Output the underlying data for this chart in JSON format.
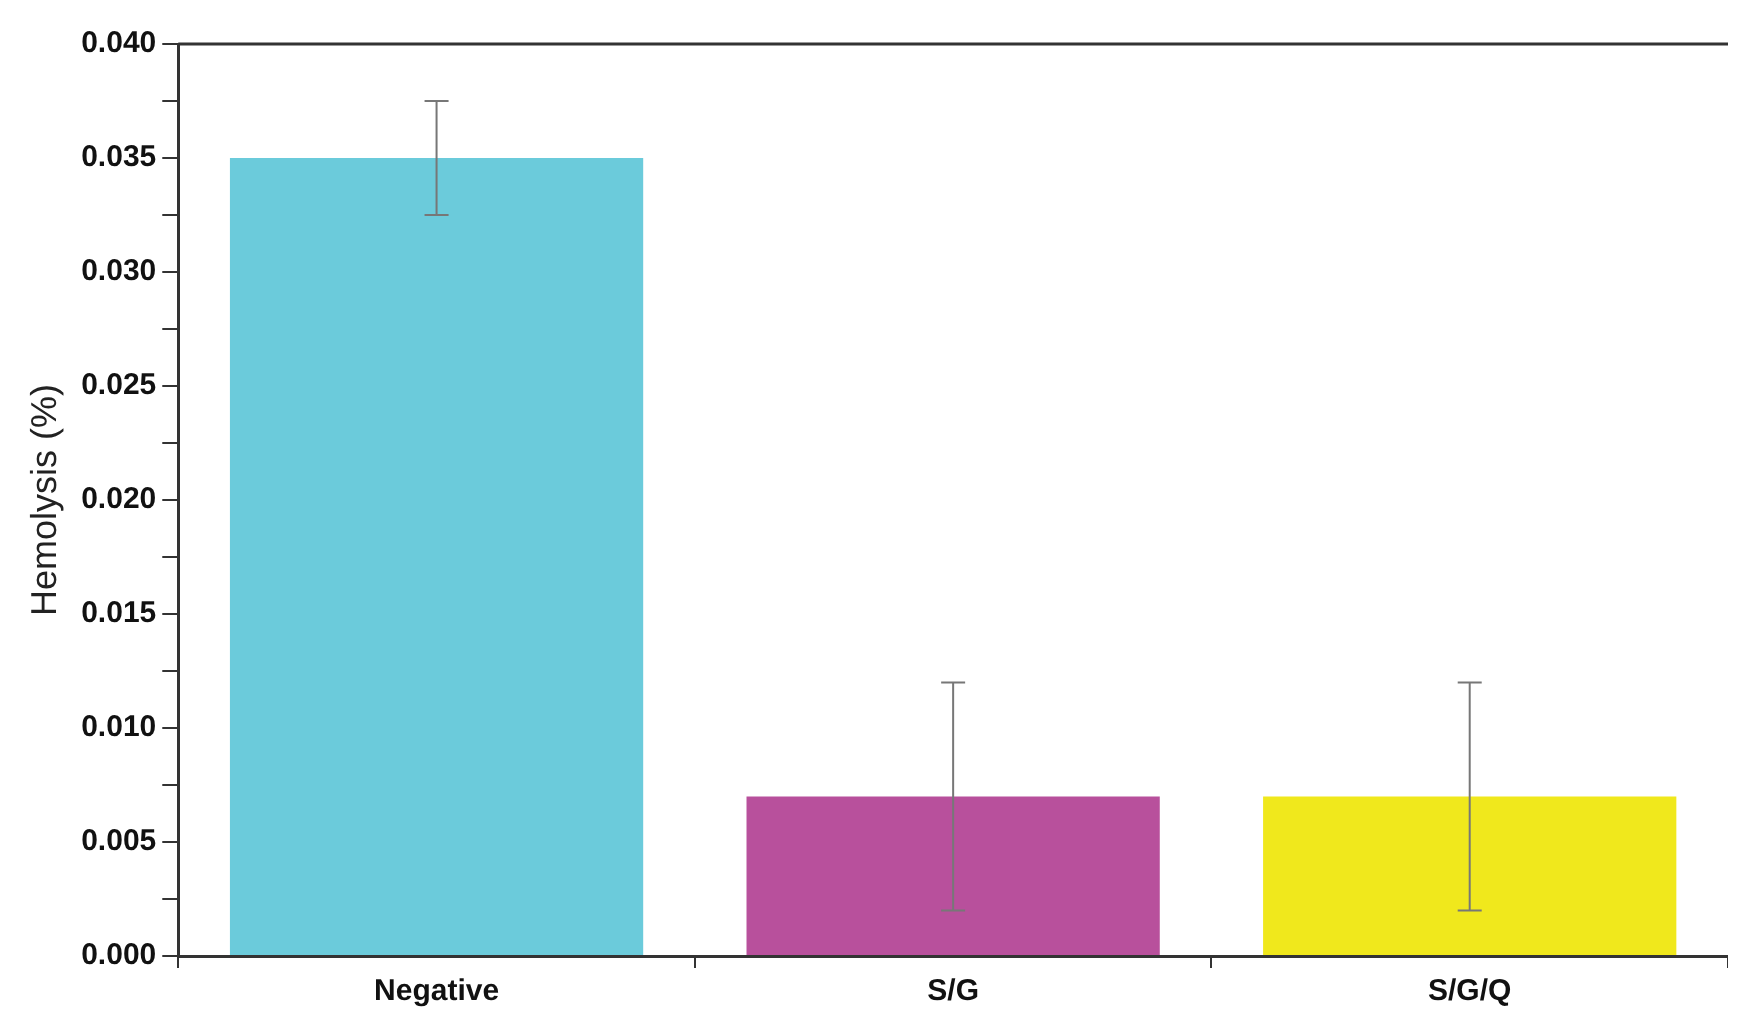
{
  "chart_data": {
    "type": "bar",
    "ylabel": "Hemolysis (%)",
    "categories": [
      "Negative",
      "S/G",
      "S/G/Q"
    ],
    "values": [
      0.035,
      0.007,
      0.007
    ],
    "colors": [
      "#6bcbdb",
      "#b8509c",
      "#f0e81c"
    ],
    "errors": [
      0.0025,
      0.005,
      0.005
    ],
    "ylim": [
      0,
      0.04
    ],
    "yticks": [
      {
        "value": 0,
        "label": "0.000"
      },
      {
        "value": 0.0025,
        "label": null
      },
      {
        "value": 0.005,
        "label": "0.005"
      },
      {
        "value": 0.0075,
        "label": null
      },
      {
        "value": 0.01,
        "label": "0.010"
      },
      {
        "value": 0.0125,
        "label": null
      },
      {
        "value": 0.015,
        "label": "0.015"
      },
      {
        "value": 0.0175,
        "label": null
      },
      {
        "value": 0.02,
        "label": "0.020"
      },
      {
        "value": 0.0225,
        "label": null
      },
      {
        "value": 0.025,
        "label": "0.025"
      },
      {
        "value": 0.0275,
        "label": null
      },
      {
        "value": 0.03,
        "label": "0.030"
      },
      {
        "value": 0.0325,
        "label": null
      },
      {
        "value": 0.035,
        "label": "0.035"
      },
      {
        "value": 0.0375,
        "label": null
      },
      {
        "value": 0.04,
        "label": "0.040"
      }
    ],
    "grid": false,
    "legend": false
  }
}
